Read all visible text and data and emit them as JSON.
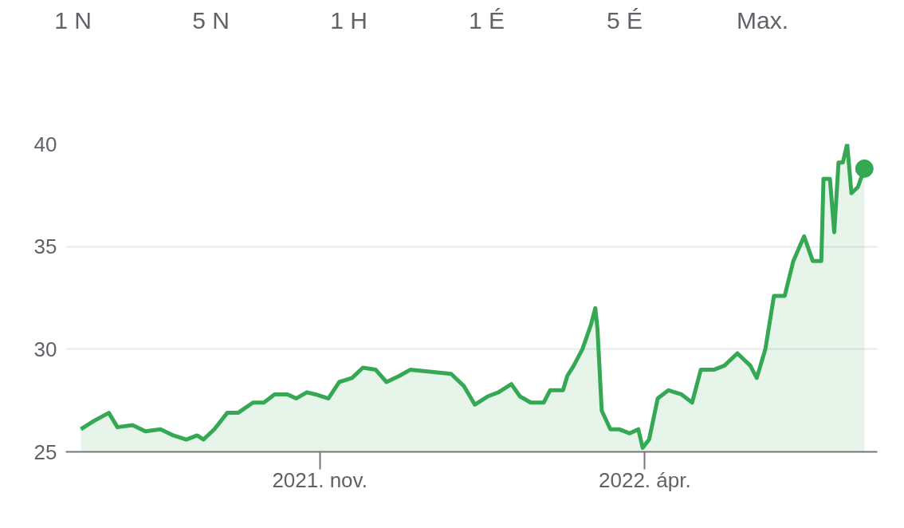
{
  "chart_data": {
    "type": "area",
    "annotations": [
      "1 N",
      "5 N",
      "1 H",
      "1 É",
      "5 É",
      "Max."
    ],
    "x": [
      "2021-07-13",
      "2021-07-19",
      "2021-07-26",
      "2021-07-30",
      "2021-08-06",
      "2021-08-12",
      "2021-08-19",
      "2021-08-25",
      "2021-08-31",
      "2021-09-05",
      "2021-09-08",
      "2021-09-13",
      "2021-09-19",
      "2021-09-24",
      "2021-10-01",
      "2021-10-06",
      "2021-10-11",
      "2021-10-17",
      "2021-10-21",
      "2021-10-26",
      "2021-10-30",
      "2021-11-05",
      "2021-11-10",
      "2021-11-16",
      "2021-11-21",
      "2021-11-27",
      "2021-12-02",
      "2021-12-08",
      "2021-12-13",
      "2021-12-23",
      "2022-01-01",
      "2022-01-07",
      "2022-01-12",
      "2022-01-18",
      "2022-01-23",
      "2022-01-29",
      "2022-02-02",
      "2022-02-07",
      "2022-02-13",
      "2022-02-16",
      "2022-02-22",
      "2022-02-24",
      "2022-02-27",
      "2022-03-03",
      "2022-03-07",
      "2022-03-09",
      "2022-03-10",
      "2022-03-12",
      "2022-03-16",
      "2022-03-20",
      "2022-03-25",
      "2022-03-29",
      "2022-03-31",
      "2022-04-03",
      "2022-04-07",
      "2022-04-12",
      "2022-04-18",
      "2022-04-23",
      "2022-04-27",
      "2022-05-03",
      "2022-05-08",
      "2022-05-14",
      "2022-05-20",
      "2022-05-23",
      "2022-05-27",
      "2022-05-31",
      "2022-06-05",
      "2022-06-09",
      "2022-06-14",
      "2022-06-18",
      "2022-06-22",
      "2022-06-23",
      "2022-06-26",
      "2022-06-28",
      "2022-06-30",
      "2022-07-02",
      "2022-07-04",
      "2022-07-06",
      "2022-07-09",
      "2022-07-12"
    ],
    "series": [
      {
        "color": "#34a853",
        "values": [
          26.1,
          26.5,
          26.9,
          26.2,
          26.3,
          26.0,
          26.1,
          25.8,
          25.6,
          25.8,
          25.6,
          26.1,
          26.9,
          26.9,
          27.4,
          27.4,
          27.8,
          27.8,
          27.6,
          27.9,
          27.8,
          27.6,
          28.4,
          28.6,
          29.1,
          29.0,
          28.4,
          28.7,
          29.0,
          28.9,
          28.8,
          28.2,
          27.3,
          27.7,
          27.9,
          28.3,
          27.7,
          27.4,
          27.4,
          28.0,
          28.0,
          28.7,
          29.2,
          30.0,
          31.2,
          32.0,
          31.0,
          27.0,
          26.1,
          26.1,
          25.9,
          26.1,
          25.2,
          25.6,
          27.6,
          28.0,
          27.8,
          27.4,
          29.0,
          29.0,
          29.2,
          29.8,
          29.2,
          28.6,
          30.0,
          32.6,
          32.6,
          34.3,
          35.5,
          34.3,
          34.3,
          38.3,
          38.3,
          35.7,
          39.1,
          39.1,
          40.0,
          37.6,
          37.9,
          38.8
        ]
      },
      {
        "type": "scatter",
        "marker": "circle",
        "color": "#34a853",
        "x": [
          "2022-07-12"
        ],
        "values": [
          38.8
        ]
      }
    ],
    "xlim": [
      "2021-07-06",
      "2022-07-18"
    ],
    "xticks": [
      {
        "value": "2021-11-01",
        "label": "2021. nov."
      },
      {
        "value": "2022-04-01",
        "label": "2022. ápr."
      }
    ],
    "ylim": [
      25,
      40
    ],
    "yticks": [
      25,
      30,
      35,
      40
    ],
    "grid": "y",
    "marker": "none",
    "line_style": "solid"
  }
}
